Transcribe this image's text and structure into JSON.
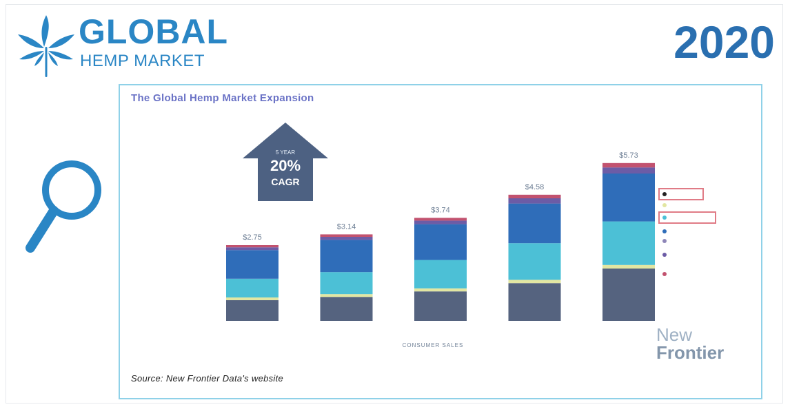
{
  "header": {
    "brand_title": "GLOBAL",
    "brand_subtitle": "HEMP MARKET",
    "year": "2020"
  },
  "colors": {
    "brand_blue": "#2a86c5",
    "year_blue": "#2a6fb0",
    "panel_border": "#8fd1e8",
    "title_purple": "#6b73c6",
    "arrow_fill": "#4d6182"
  },
  "icons": {
    "logo": "hemp-leaf-icon",
    "search": "magnifier-icon"
  },
  "chart_data": {
    "type": "bar",
    "stacked": true,
    "title": "The Global Hemp Market Expansion",
    "xlabel": "CONSUMER SALES",
    "categories": [
      "",
      "",
      "",
      "",
      ""
    ],
    "totals": [
      2.75,
      3.14,
      3.74,
      4.58,
      5.73
    ],
    "total_labels": [
      "$2.75",
      "$3.14",
      "$3.74",
      "$4.58",
      "$5.73"
    ],
    "ylim": [
      0,
      7
    ],
    "grid": false,
    "legend_position": "right",
    "series": [
      {
        "color": "#55637f",
        "values": [
          0.75,
          0.87,
          1.07,
          1.37,
          1.9
        ]
      },
      {
        "color": "#e2e6a2",
        "values": [
          0.1,
          0.1,
          0.11,
          0.12,
          0.13
        ]
      },
      {
        "color": "#4cc0d6",
        "values": [
          0.68,
          0.8,
          1.03,
          1.33,
          1.58
        ]
      },
      {
        "color": "#2f6db9",
        "values": [
          1.04,
          1.17,
          1.3,
          1.44,
          1.74
        ]
      },
      {
        "color": "#6c5ca6",
        "values": [
          0.1,
          0.11,
          0.13,
          0.19,
          0.22
        ]
      },
      {
        "color": "#c2526f",
        "values": [
          0.08,
          0.09,
          0.1,
          0.13,
          0.16
        ]
      }
    ],
    "callout": {
      "top_text": "5 YEAR",
      "value": "20%",
      "label": "CAGR"
    }
  },
  "footer": {
    "source": "Source: New Frontier Data's website",
    "logo_new": "New",
    "logo_frontier": "Frontier"
  }
}
